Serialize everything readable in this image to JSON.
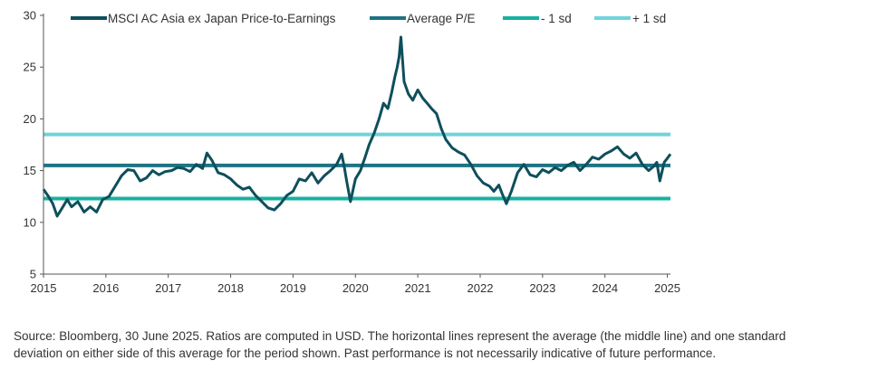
{
  "chart_data": {
    "type": "line",
    "ylim": [
      5,
      30
    ],
    "yticks": [
      5,
      10,
      15,
      20,
      25,
      30
    ],
    "xlim": [
      2015.0,
      2025.05
    ],
    "xticks": [
      "2015",
      "2016",
      "2017",
      "2018",
      "2019",
      "2020",
      "2021",
      "2022",
      "2023",
      "2024",
      "2025"
    ],
    "grid": false,
    "legend_position": "top",
    "legend": [
      {
        "label": "MSCI AC Asia ex Japan Price-to-Earnings",
        "color": "#0e4f5c"
      },
      {
        "label": "Average P/E",
        "color": "#1e7283"
      },
      {
        "label": "- 1 sd",
        "color": "#17b1a2"
      },
      {
        "label": "+ 1 sd",
        "color": "#6fd3dc"
      }
    ],
    "series": [
      {
        "name": "MSCI AC Asia ex Japan Price-to-Earnings",
        "color": "#0e4f5c",
        "x": [
          2015.0,
          2015.08,
          2015.15,
          2015.22,
          2015.3,
          2015.38,
          2015.45,
          2015.55,
          2015.65,
          2015.75,
          2015.85,
          2015.95,
          2016.05,
          2016.15,
          2016.25,
          2016.35,
          2016.45,
          2016.55,
          2016.65,
          2016.75,
          2016.85,
          2016.95,
          2017.05,
          2017.15,
          2017.25,
          2017.35,
          2017.45,
          2017.55,
          2017.62,
          2017.7,
          2017.8,
          2017.9,
          2018.0,
          2018.1,
          2018.2,
          2018.3,
          2018.4,
          2018.5,
          2018.6,
          2018.7,
          2018.8,
          2018.9,
          2019.0,
          2019.1,
          2019.2,
          2019.3,
          2019.4,
          2019.5,
          2019.6,
          2019.7,
          2019.78,
          2019.82,
          2019.86,
          2019.92,
          2020.0,
          2020.08,
          2020.15,
          2020.22,
          2020.3,
          2020.38,
          2020.45,
          2020.52,
          2020.58,
          2020.63,
          2020.67,
          2020.7,
          2020.73,
          2020.78,
          2020.85,
          2020.92,
          2021.0,
          2021.08,
          2021.15,
          2021.22,
          2021.3,
          2021.38,
          2021.45,
          2021.55,
          2021.65,
          2021.75,
          2021.85,
          2021.95,
          2022.05,
          2022.15,
          2022.22,
          2022.3,
          2022.35,
          2022.42,
          2022.5,
          2022.6,
          2022.7,
          2022.8,
          2022.9,
          2023.0,
          2023.1,
          2023.2,
          2023.3,
          2023.4,
          2023.5,
          2023.6,
          2023.7,
          2023.8,
          2023.9,
          2024.0,
          2024.1,
          2024.2,
          2024.3,
          2024.4,
          2024.5,
          2024.6,
          2024.7,
          2024.78,
          2024.83,
          2024.88,
          2024.95,
          2025.0,
          2025.05
        ],
        "y": [
          13.2,
          12.5,
          11.8,
          10.6,
          11.4,
          12.2,
          11.5,
          12.0,
          11.0,
          11.5,
          11.0,
          12.2,
          12.5,
          13.5,
          14.5,
          15.1,
          15.0,
          14.0,
          14.3,
          15.0,
          14.6,
          14.9,
          15.0,
          15.3,
          15.2,
          14.9,
          15.6,
          15.2,
          16.7,
          16.0,
          14.8,
          14.6,
          14.2,
          13.6,
          13.2,
          13.4,
          12.6,
          12.0,
          11.4,
          11.2,
          11.8,
          12.6,
          13.0,
          14.2,
          14.0,
          14.8,
          13.8,
          14.5,
          15.0,
          15.6,
          16.6,
          15.4,
          14.0,
          12.0,
          14.2,
          15.0,
          16.2,
          17.5,
          18.6,
          20.0,
          21.5,
          21.0,
          22.5,
          24.0,
          25.0,
          26.0,
          27.9,
          23.6,
          22.4,
          21.8,
          22.8,
          22.0,
          21.5,
          21.0,
          20.5,
          19.0,
          18.0,
          17.2,
          16.8,
          16.5,
          15.6,
          14.5,
          13.8,
          13.5,
          13.0,
          13.6,
          12.8,
          11.8,
          13.0,
          14.8,
          15.6,
          14.6,
          14.4,
          15.1,
          14.8,
          15.3,
          15.0,
          15.5,
          15.8,
          15.0,
          15.6,
          16.3,
          16.1,
          16.6,
          16.9,
          17.3,
          16.6,
          16.2,
          16.7,
          15.6,
          15.0,
          15.4,
          15.8,
          14.0,
          15.8,
          16.2,
          16.6
        ]
      },
      {
        "name": "Average P/E",
        "color": "#1e7283",
        "x": [
          2015.0,
          2025.05
        ],
        "y": [
          15.5,
          15.5
        ]
      },
      {
        "name": "- 1 sd",
        "color": "#17b1a2",
        "x": [
          2015.0,
          2025.05
        ],
        "y": [
          12.3,
          12.3
        ]
      },
      {
        "name": "+ 1 sd",
        "color": "#6fd3dc",
        "x": [
          2015.0,
          2025.05
        ],
        "y": [
          18.5,
          18.5
        ]
      }
    ]
  },
  "footnote": {
    "line1": "Source: Bloomberg, 30 June 2025. Ratios are computed in USD. The horizontal lines represent the average (the middle line) and one standard",
    "line2": "deviation on either side of this average for the period shown. Past performance is not necessarily indicative of future performance."
  }
}
